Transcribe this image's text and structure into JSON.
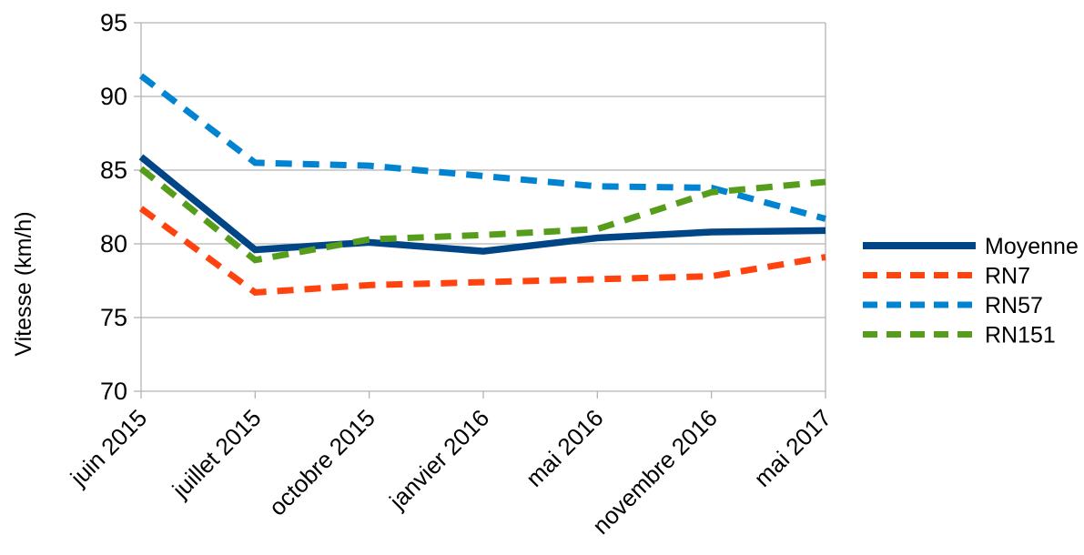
{
  "chart_data": {
    "type": "line",
    "title": "",
    "xlabel": "",
    "ylabel": "Vitesse (km/h)",
    "ylim": [
      70,
      95
    ],
    "yticks": [
      70,
      75,
      80,
      85,
      90,
      95
    ],
    "grid": "horizontal",
    "legend_position": "right",
    "background": "#FFFFFF",
    "axis_color": "#B3B3B3",
    "text_color": "#000000",
    "categories": [
      "juin 2015",
      "juillet 2015",
      "octobre 2015",
      "janvier 2016",
      "mai 2016",
      "novembre 2016",
      "mai 2017"
    ],
    "series": [
      {
        "name": "Moyenne",
        "line_style": "solid",
        "color": "#004586",
        "values": [
          85.9,
          79.6,
          80.1,
          79.5,
          80.4,
          80.8,
          80.9
        ]
      },
      {
        "name": "RN7",
        "line_style": "dashed",
        "color": "#FF420E",
        "values": [
          82.4,
          76.7,
          77.2,
          77.4,
          77.6,
          77.8,
          79.1
        ]
      },
      {
        "name": "RN57",
        "line_style": "dashed",
        "color": "#0084D1",
        "values": [
          91.4,
          85.5,
          85.3,
          84.6,
          83.9,
          83.8,
          81.7
        ]
      },
      {
        "name": "RN151",
        "line_style": "dashed",
        "color": "#579D1C",
        "values": [
          85.1,
          78.9,
          80.3,
          80.6,
          81.0,
          83.5,
          84.2
        ]
      }
    ]
  }
}
